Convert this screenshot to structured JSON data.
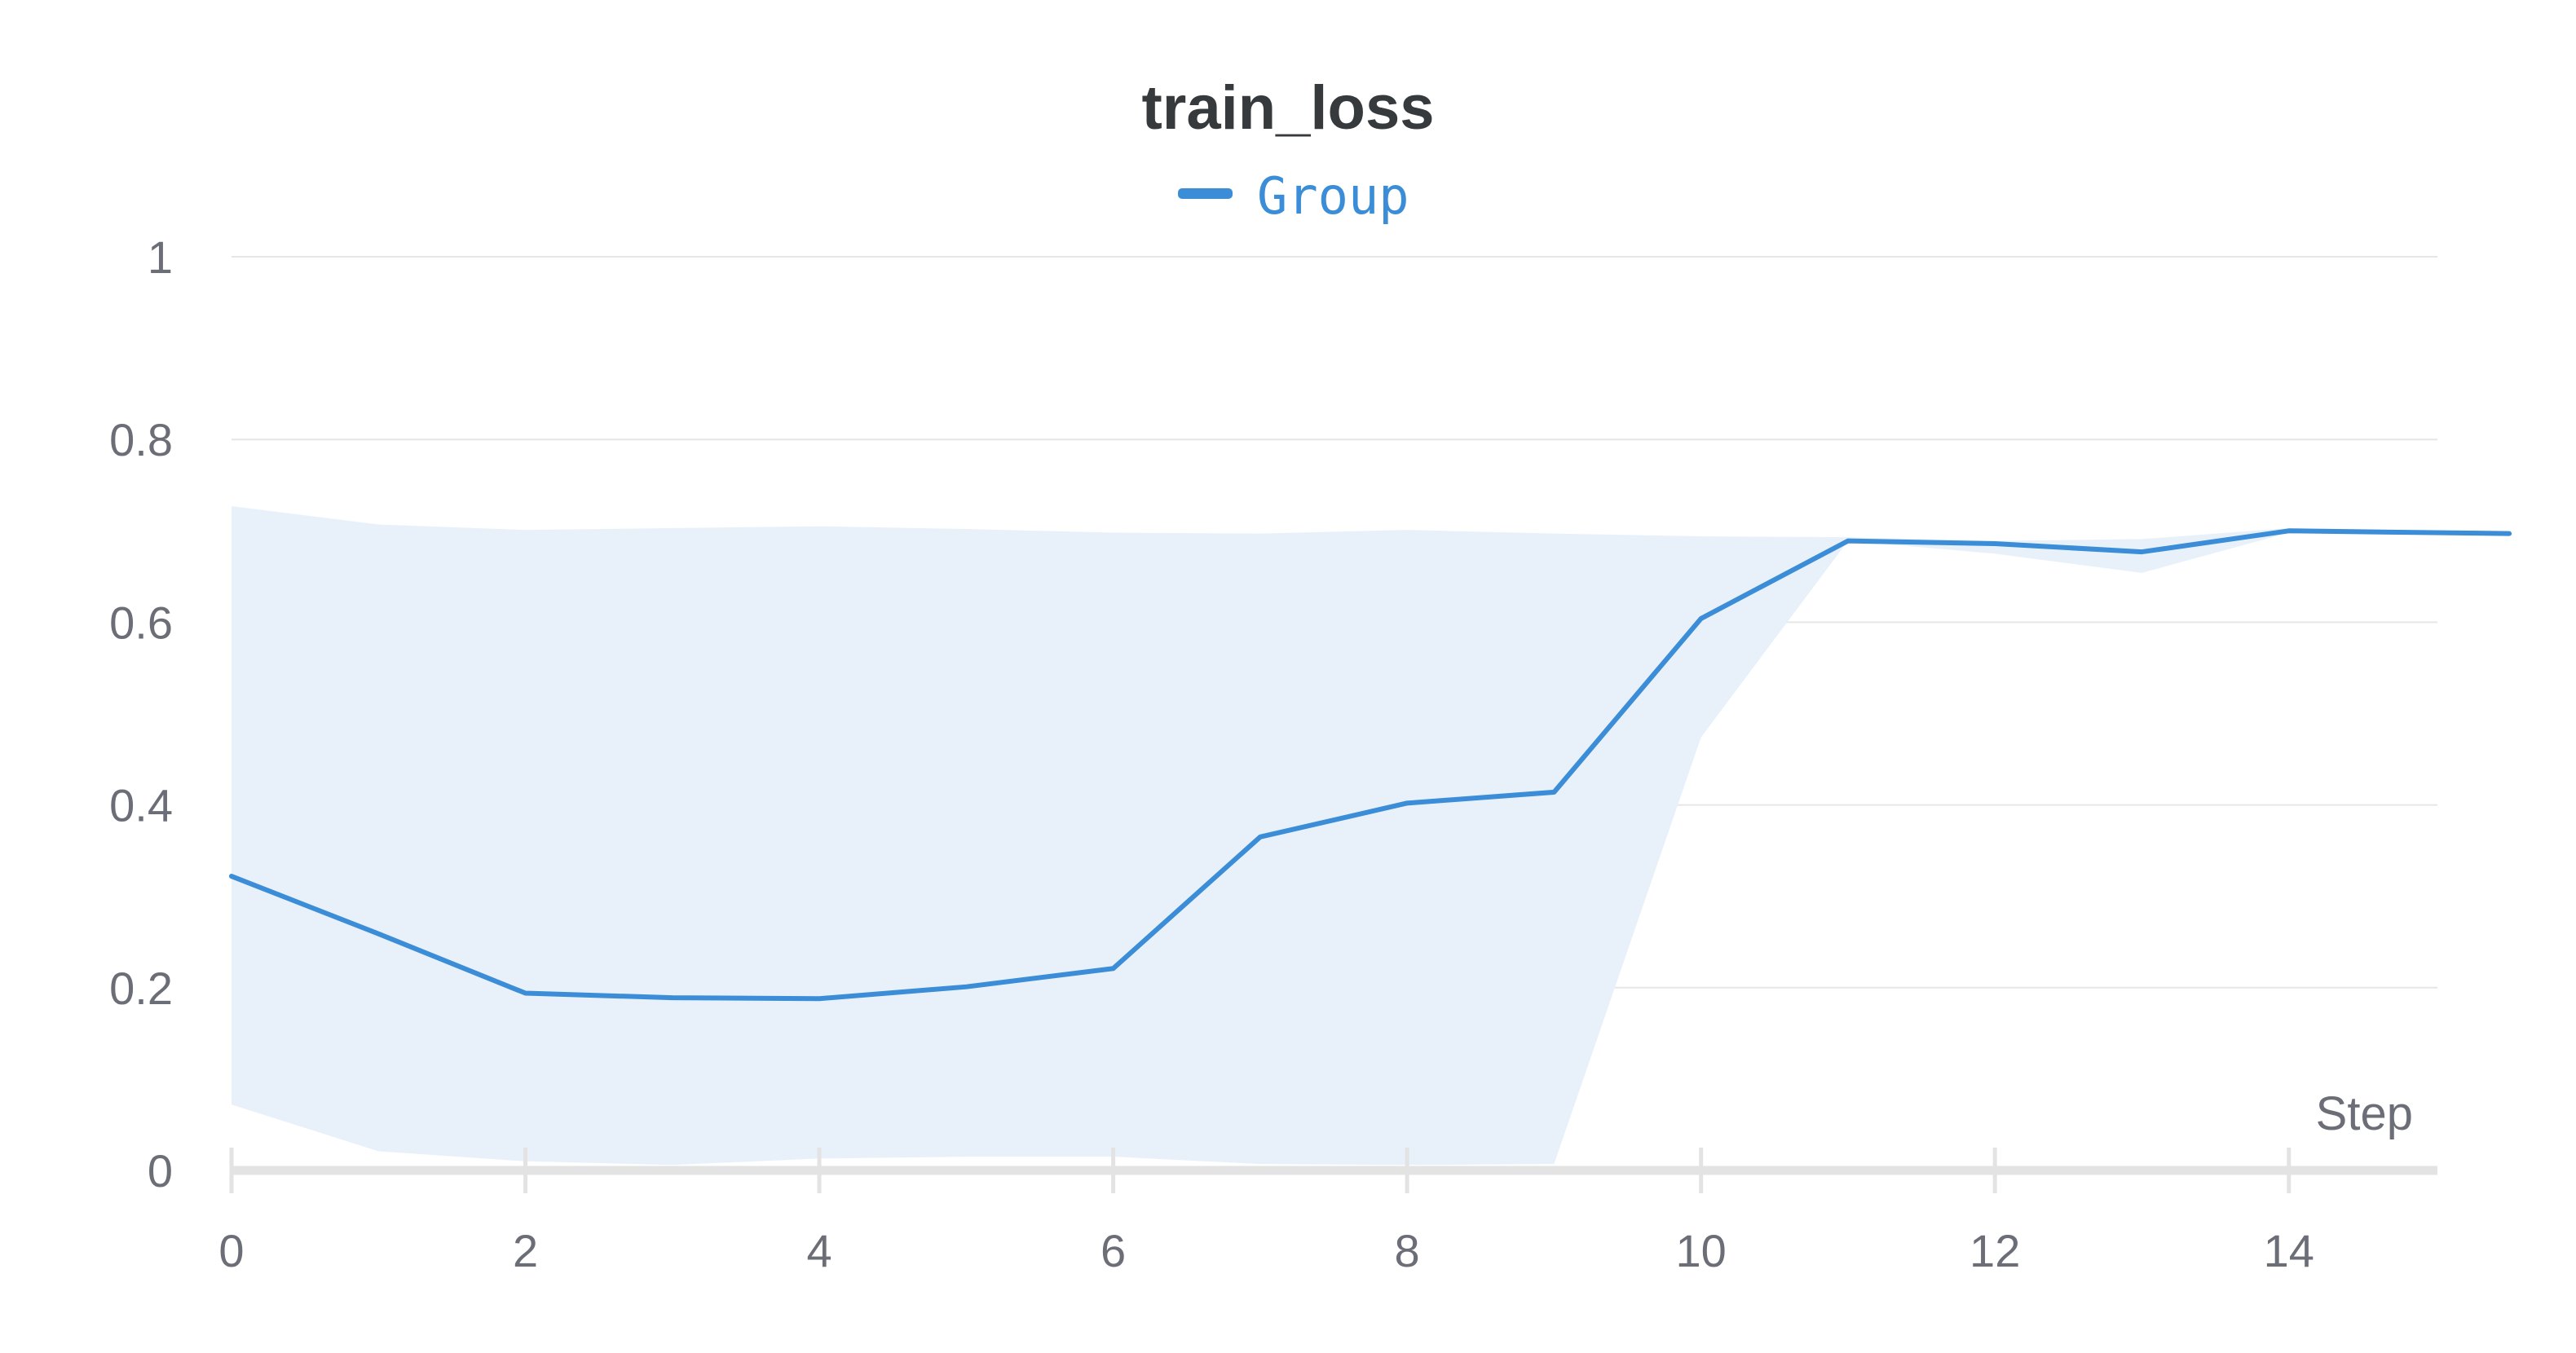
{
  "chart_data": {
    "type": "line",
    "title": "train_loss",
    "xlabel": "Step",
    "ylabel": "",
    "xlim": [
      0,
      15
    ],
    "ylim": [
      0,
      1
    ],
    "x_ticks": [
      "0",
      "2",
      "4",
      "6",
      "8",
      "10",
      "12",
      "14"
    ],
    "y_ticks": [
      "0",
      "0.2",
      "0.4",
      "0.6",
      "0.8",
      "1"
    ],
    "x_tick_values": [
      0,
      2,
      4,
      6,
      8,
      10,
      12,
      14
    ],
    "y_tick_values": [
      0,
      0.2,
      0.4,
      0.6,
      0.8,
      1
    ],
    "grid": "horizontal",
    "legend": {
      "position": "top-center",
      "entries": [
        {
          "label": "Group",
          "color": "#3a8dd6"
        }
      ]
    },
    "series": [
      {
        "name": "Group",
        "color": "#3a8dd6",
        "band_color": "#e8f1fa",
        "x": [
          0,
          1,
          2,
          3,
          4,
          5,
          6,
          7,
          8,
          9,
          10,
          11,
          12,
          13,
          14,
          15.5
        ],
        "y": [
          0.322,
          0.259,
          0.194,
          0.189,
          0.188,
          0.201,
          0.221,
          0.365,
          0.402,
          0.414,
          0.604,
          0.689,
          0.686,
          0.677,
          0.7,
          0.697
        ],
        "upper": [
          0.727,
          0.707,
          0.701,
          0.703,
          0.705,
          0.702,
          0.698,
          0.697,
          0.701,
          0.697,
          0.694,
          0.693,
          0.689,
          0.691,
          0.703,
          0.699
        ],
        "lower": [
          0.072,
          0.021,
          0.01,
          0.006,
          0.013,
          0.015,
          0.015,
          0.007,
          0.006,
          0.007,
          0.474,
          0.689,
          0.675,
          0.654,
          0.698,
          0.696
        ]
      }
    ]
  }
}
